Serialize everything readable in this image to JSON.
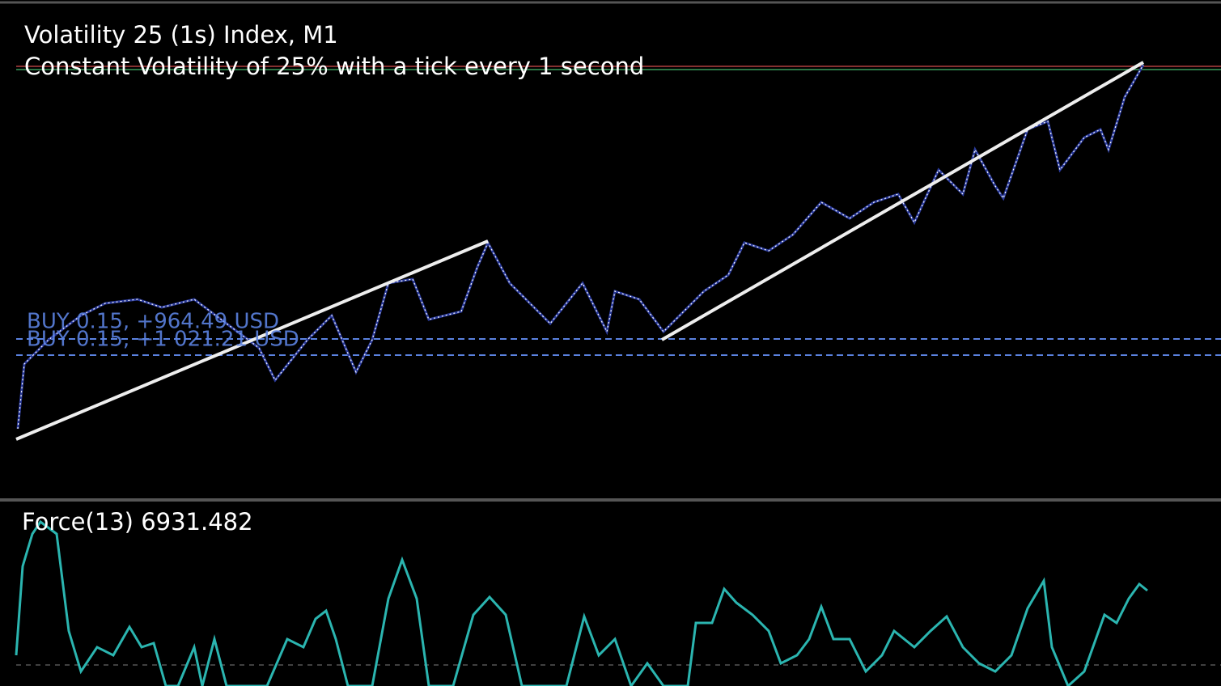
{
  "header": {
    "title": "Volatility 25 (1s) Index, M1",
    "subtitle": "Constant Volatility of 25% with a tick every 1 second"
  },
  "positions": [
    {
      "label": "BUY 0.15, +964.49 USD"
    },
    {
      "label": "BUY 0.15, +1 021.21 USD"
    }
  ],
  "indicator": {
    "label": "Force(13) 6931.482"
  }
}
